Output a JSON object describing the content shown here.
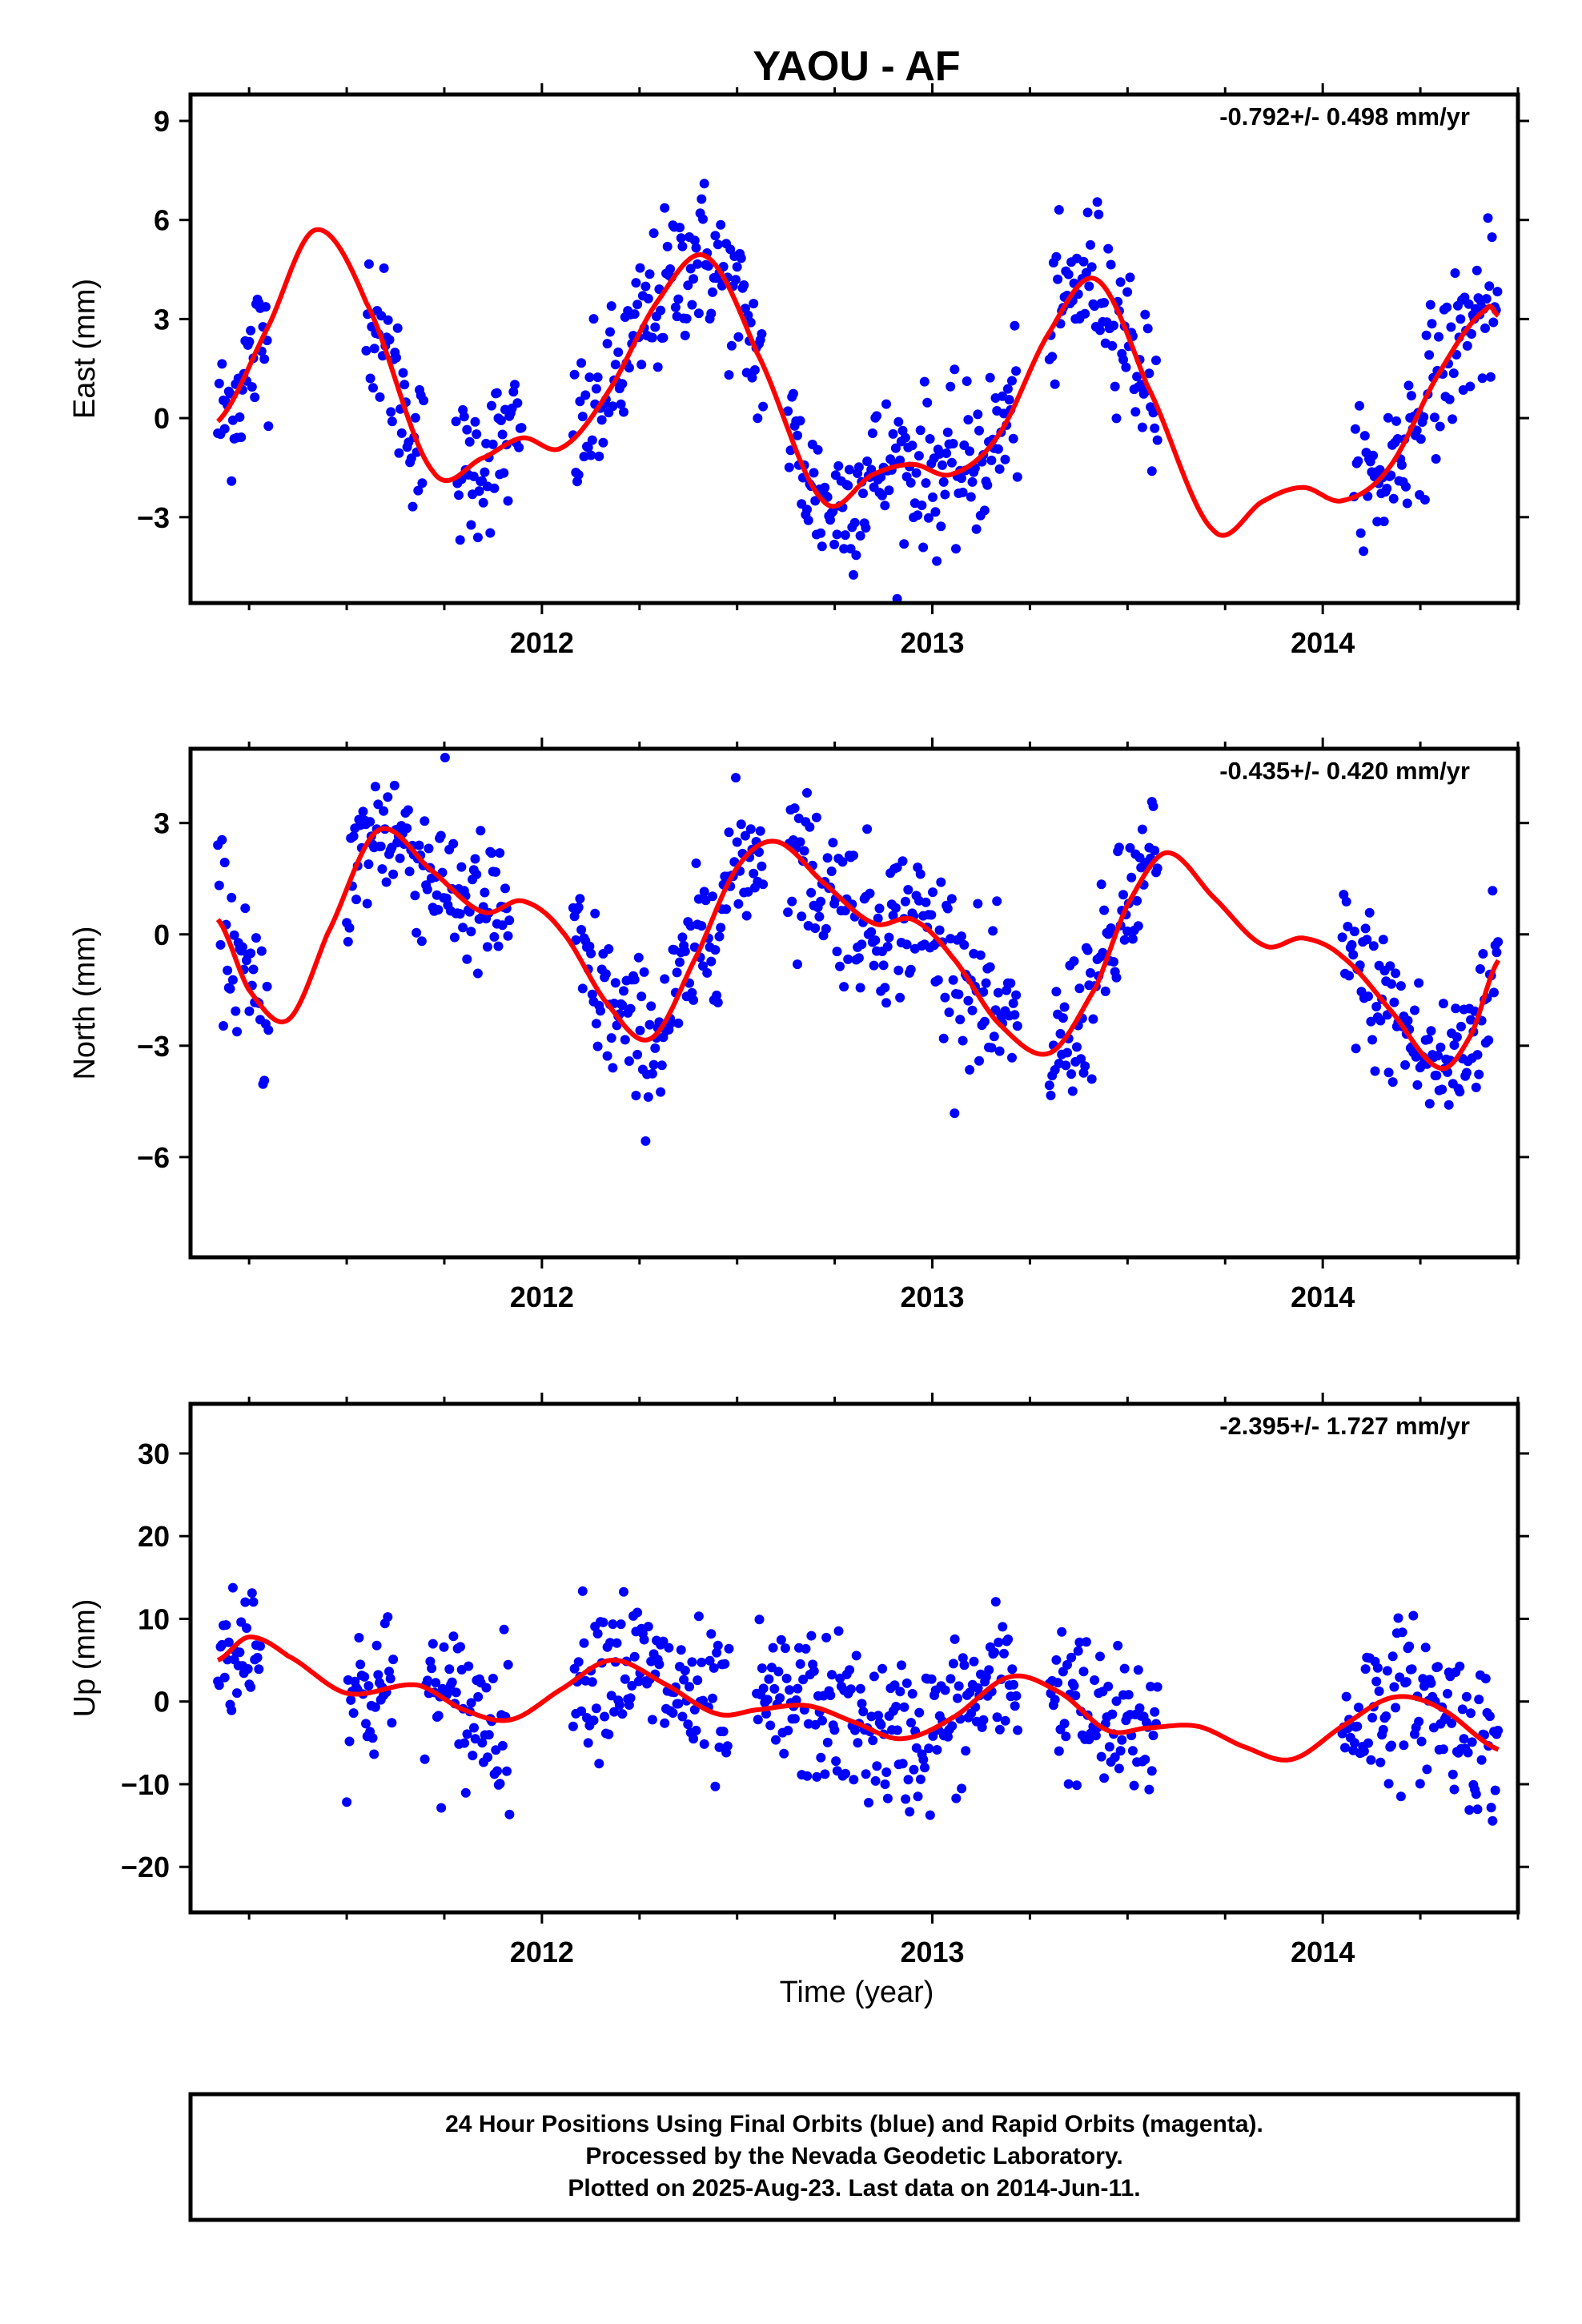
{
  "title": "YAOU - AF",
  "xlabel": "Time (year)",
  "footer": {
    "line1": "24 Hour Positions Using Final Orbits (blue) and Rapid Orbits (magenta).",
    "line2": "Processed by the Nevada Geodetic Laboratory.",
    "line3": "Plotted on 2025-Aug-23. Last data on 2014-Jun-11."
  },
  "colors": {
    "data": "#0000ff",
    "model": "#ff0000",
    "frame": "#000000"
  },
  "chart_data": [
    {
      "type": "scatter",
      "ylabel": "East (mm)",
      "rate": "-0.792+/- 0.498 mm/yr",
      "xlim": [
        2011.1,
        2014.5
      ],
      "ylim": [
        -5.6,
        9.8
      ],
      "x_ticks": [
        2012,
        2013,
        2014
      ],
      "y_ticks": [
        9,
        6,
        3,
        0,
        -3
      ],
      "y_tick_labels": [
        "9",
        "6",
        "3",
        "0",
        "−3"
      ],
      "data_ranges": [
        [
          2011.17,
          2011.3
        ],
        [
          2011.55,
          2011.7
        ],
        [
          2011.78,
          2011.95
        ],
        [
          2012.08,
          2012.57
        ],
        [
          2012.63,
          2013.22
        ],
        [
          2013.3,
          2013.58
        ],
        [
          2014.08,
          2014.45
        ]
      ],
      "model": {
        "x": [
          2011.17,
          2011.3,
          2011.42,
          2011.55,
          2011.72,
          2011.85,
          2011.95,
          2012.05,
          2012.17,
          2012.3,
          2012.42,
          2012.55,
          2012.72,
          2012.85,
          2012.95,
          2013.05,
          2013.17,
          2013.3,
          2013.42,
          2013.55,
          2013.72,
          2013.85,
          2013.95,
          2014.05,
          2014.17,
          2014.3,
          2014.42,
          2014.45
        ],
        "y": [
          -0.1,
          2.8,
          5.7,
          3.5,
          -1.6,
          -1.2,
          -0.6,
          -0.9,
          0.8,
          3.6,
          4.9,
          2.0,
          -2.5,
          -1.7,
          -1.4,
          -1.7,
          -0.5,
          2.6,
          4.2,
          1.0,
          -3.4,
          -2.5,
          -2.1,
          -2.5,
          -1.5,
          1.4,
          3.3,
          3.1
        ]
      }
    },
    {
      "type": "scatter",
      "ylabel": "North (mm)",
      "rate": "-0.435+/- 0.420 mm/yr",
      "xlim": [
        2011.1,
        2014.5
      ],
      "ylim": [
        -8.7,
        5.0
      ],
      "x_ticks": [
        2012,
        2013,
        2014
      ],
      "y_ticks": [
        3,
        0,
        -3,
        -6
      ],
      "y_tick_labels": [
        "3",
        "0",
        "−3",
        "−6"
      ],
      "data_ranges": [
        [
          2011.17,
          2011.3
        ],
        [
          2011.5,
          2011.92
        ],
        [
          2012.08,
          2012.57
        ],
        [
          2012.63,
          2013.22
        ],
        [
          2013.3,
          2013.58
        ],
        [
          2014.05,
          2014.45
        ]
      ],
      "model": {
        "x": [
          2011.17,
          2011.25,
          2011.35,
          2011.45,
          2011.58,
          2011.72,
          2011.85,
          2011.95,
          2012.05,
          2012.17,
          2012.28,
          2012.4,
          2012.5,
          2012.6,
          2012.72,
          2012.85,
          2012.95,
          2013.05,
          2013.17,
          2013.3,
          2013.42,
          2013.5,
          2013.6,
          2013.72,
          2013.85,
          2013.95,
          2014.05,
          2014.17,
          2014.3,
          2014.38,
          2014.45
        ],
        "y": [
          0.4,
          -1.5,
          -2.3,
          0.0,
          2.8,
          1.7,
          0.6,
          0.9,
          0.1,
          -1.9,
          -2.8,
          -0.5,
          1.8,
          2.5,
          1.4,
          0.3,
          0.4,
          -0.6,
          -2.4,
          -3.2,
          -1.4,
          0.8,
          2.2,
          1.0,
          -0.3,
          -0.1,
          -0.6,
          -2.0,
          -3.6,
          -2.7,
          -0.7
        ]
      }
    },
    {
      "type": "scatter",
      "ylabel": "Up (mm)",
      "rate": "-2.395+/- 1.727 mm/yr",
      "xlim": [
        2011.1,
        2014.5
      ],
      "ylim": [
        -25.5,
        36
      ],
      "x_ticks": [
        2012,
        2013,
        2014
      ],
      "y_ticks": [
        30,
        20,
        10,
        0,
        -10,
        -20
      ],
      "y_tick_labels": [
        "30",
        "20",
        "10",
        "0",
        "−10",
        "−20"
      ],
      "data_ranges": [
        [
          2011.17,
          2011.28
        ],
        [
          2011.5,
          2011.62
        ],
        [
          2011.7,
          2011.92
        ],
        [
          2012.08,
          2012.48
        ],
        [
          2012.55,
          2013.22
        ],
        [
          2013.3,
          2013.58
        ],
        [
          2014.05,
          2014.45
        ]
      ],
      "model": {
        "x": [
          2011.17,
          2011.25,
          2011.35,
          2011.5,
          2011.68,
          2011.8,
          2011.92,
          2012.05,
          2012.18,
          2012.32,
          2012.45,
          2012.55,
          2012.68,
          2012.8,
          2012.92,
          2013.05,
          2013.2,
          2013.33,
          2013.45,
          2013.55,
          2013.68,
          2013.8,
          2013.92,
          2014.05,
          2014.18,
          2014.3,
          2014.45
        ],
        "y": [
          5.0,
          7.8,
          5.5,
          1.0,
          2.0,
          -1.0,
          -2.2,
          1.5,
          5.0,
          2.0,
          -1.5,
          -1.0,
          -0.5,
          -2.5,
          -4.5,
          -2.0,
          3.0,
          1.0,
          -3.5,
          -3.2,
          -3.0,
          -5.5,
          -7.0,
          -3.0,
          0.5,
          -0.8,
          -5.8
        ]
      }
    }
  ]
}
